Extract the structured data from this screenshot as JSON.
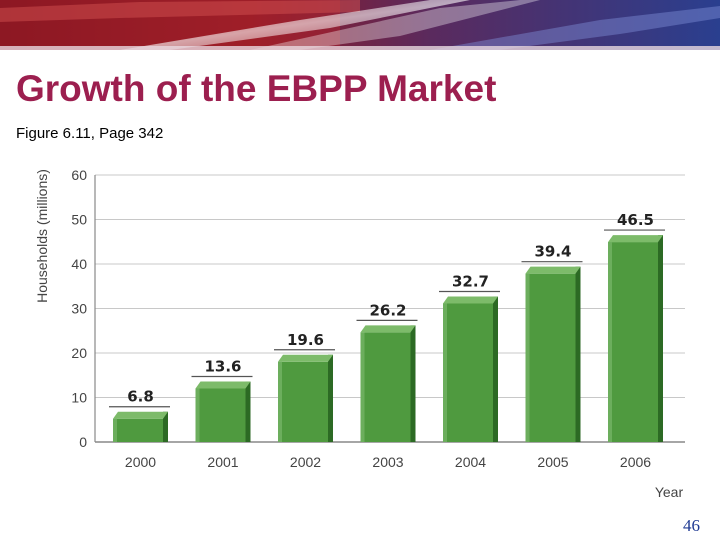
{
  "slide": {
    "title": "Growth of the EBPP Market",
    "subtitle": "Figure 6.11, Page 342",
    "page_number": "46"
  },
  "colors": {
    "title": "#9c1f4f",
    "bar_face": "#4f9a3f",
    "bar_top": "#7dbb6a",
    "bar_side": "#2c6a24",
    "axis_text": "#444444",
    "grid": "#c8c8c8"
  },
  "chart_data": {
    "type": "bar",
    "title": "",
    "xlabel": "Year",
    "ylabel": "Households (millions)",
    "ylim": [
      0,
      60
    ],
    "yticks": [
      "0",
      "10",
      "20",
      "30",
      "40",
      "50",
      "60"
    ],
    "grid": true,
    "categories": [
      "2000",
      "2001",
      "2002",
      "2003",
      "2004",
      "2005",
      "2006"
    ],
    "values": [
      6.8,
      13.6,
      19.6,
      26.2,
      32.7,
      39.4,
      46.5
    ],
    "data_labels": [
      "6.8",
      "13.6",
      "19.6",
      "26.2",
      "32.7",
      "39.4",
      "46.5"
    ]
  }
}
